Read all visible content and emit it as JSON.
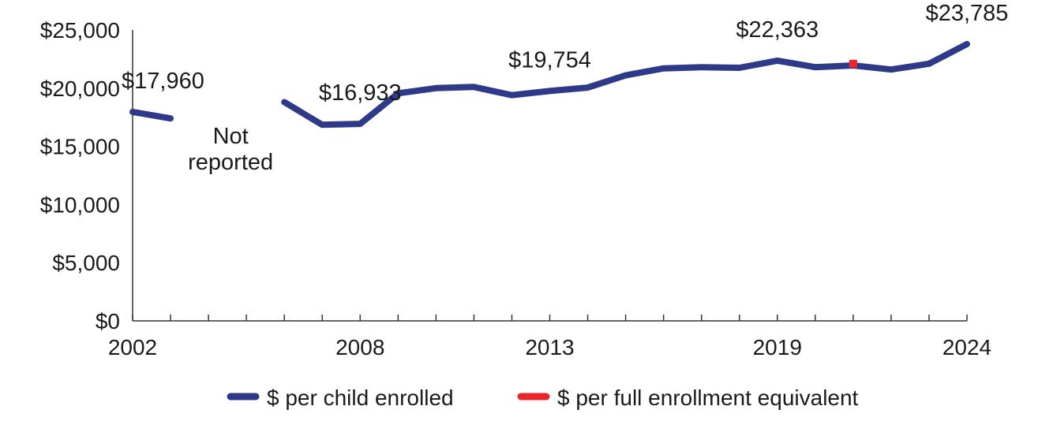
{
  "chart_data": {
    "type": "line",
    "title": "",
    "xlabel": "",
    "ylabel": "",
    "xlim": [
      2002,
      2024
    ],
    "ylim": [
      0,
      25000
    ],
    "grid": false,
    "legend_position": "bottom",
    "y_ticks": [
      0,
      5000,
      10000,
      15000,
      20000,
      25000
    ],
    "y_tick_labels": [
      "$0",
      "$5,000",
      "$10,000",
      "$15,000",
      "$20,000",
      "$25,000"
    ],
    "x_tick_labels": [
      {
        "x": 2002,
        "label": "2002"
      },
      {
        "x": 2008,
        "label": "2008"
      },
      {
        "x": 2013,
        "label": "2013"
      },
      {
        "x": 2019,
        "label": "2019"
      },
      {
        "x": 2024,
        "label": "2024"
      }
    ],
    "series": [
      {
        "name": "$ per child enrolled",
        "color": "#2e3a87",
        "segments": [
          [
            [
              2002,
              17960
            ],
            [
              2003,
              17400
            ]
          ],
          [
            [
              2006,
              18800
            ],
            [
              2007,
              16850
            ],
            [
              2008,
              16933
            ],
            [
              2009,
              19550
            ],
            [
              2010,
              20000
            ],
            [
              2011,
              20100
            ],
            [
              2012,
              19400
            ],
            [
              2013,
              19754
            ],
            [
              2014,
              20050
            ],
            [
              2015,
              21100
            ],
            [
              2016,
              21700
            ],
            [
              2017,
              21800
            ],
            [
              2018,
              21750
            ],
            [
              2019,
              22363
            ],
            [
              2020,
              21800
            ],
            [
              2021,
              21950
            ],
            [
              2022,
              21600
            ],
            [
              2023,
              22100
            ],
            [
              2024,
              23785
            ]
          ]
        ]
      },
      {
        "name": "$ per full enrollment equivalent",
        "color": "#e8262d",
        "points": [
          [
            2021,
            22100
          ]
        ]
      }
    ],
    "data_labels": [
      {
        "x": 2002,
        "y": 17960,
        "text": "$17,960"
      },
      {
        "x": 2008,
        "y": 16933,
        "text": "$16,933"
      },
      {
        "x": 2013,
        "y": 19754,
        "text": "$19,754"
      },
      {
        "x": 2019,
        "y": 22363,
        "text": "$22,363"
      },
      {
        "x": 2024,
        "y": 23785,
        "text": "$23,785"
      }
    ],
    "annotations": [
      {
        "x": 2005,
        "lines": [
          "Not",
          "reported"
        ]
      }
    ]
  }
}
